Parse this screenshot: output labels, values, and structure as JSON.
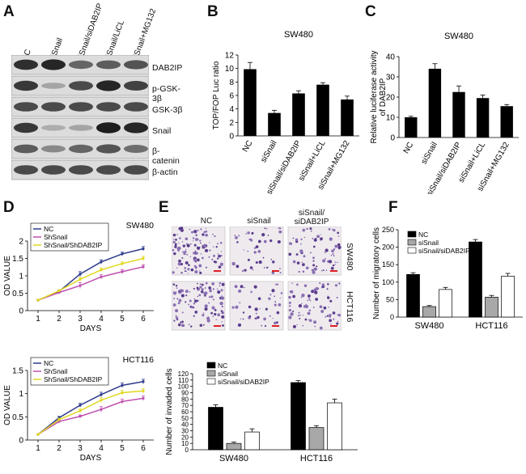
{
  "panels": {
    "A": "A",
    "B": "B",
    "C": "C",
    "D": "D",
    "E": "E",
    "F": "F"
  },
  "blot": {
    "lanes": [
      "NC",
      "siSnail",
      "siSnail/siDAB2IP",
      "siSnail/LiCL",
      "siSnail+MG132"
    ],
    "rows": [
      {
        "label": "DAB2IP",
        "intensity": [
          0.85,
          0.9,
          0.55,
          0.6,
          0.65
        ]
      },
      {
        "label": "p-GSK-3β",
        "intensity": [
          0.8,
          0.2,
          0.7,
          0.9,
          0.75
        ]
      },
      {
        "label": "GSK-3β",
        "intensity": [
          0.7,
          0.7,
          0.7,
          0.7,
          0.7
        ]
      },
      {
        "label": "Snail",
        "intensity": [
          0.8,
          0.15,
          0.2,
          0.95,
          0.9
        ]
      },
      {
        "label": "β-catenin",
        "intensity": [
          0.6,
          0.35,
          0.55,
          0.65,
          0.5
        ]
      },
      {
        "label": "β-actin",
        "intensity": [
          0.7,
          0.7,
          0.7,
          0.7,
          0.7
        ]
      }
    ]
  },
  "microscopy": {
    "columns": [
      "NC",
      "siSnail",
      "siSnail/\nsiDAB2IP"
    ],
    "rows": [
      "SW480",
      "HCT116"
    ]
  },
  "chart_data": [
    {
      "id": "B",
      "type": "bar",
      "title": "SW480",
      "ylabel": "TOP/FOP Luc ratio",
      "categories": [
        "NC",
        "siSnail",
        "siSnail/siDAB2IP",
        "siSnail+LiCL",
        "siSnail+MG132"
      ],
      "values": [
        9.9,
        3.4,
        6.3,
        7.6,
        5.4
      ],
      "errors": [
        1.0,
        0.4,
        0.4,
        0.3,
        0.5
      ],
      "ylim": [
        0,
        12
      ],
      "yticks": [
        0,
        2,
        4,
        6,
        8,
        10,
        12
      ]
    },
    {
      "id": "C",
      "type": "bar",
      "title": "SW480",
      "ylabel": "Relative luciferase activity of DAB2IP",
      "categories": [
        "NC",
        "siSnail",
        "siSnail/siDAB2IP",
        "siSnail+LiCL",
        "siSnail+MG132"
      ],
      "values": [
        10,
        34,
        22.5,
        19.5,
        15.5
      ],
      "errors": [
        0.5,
        2.5,
        3,
        1.5,
        0.8
      ],
      "ylim": [
        0,
        40
      ],
      "yticks": [
        0,
        10,
        20,
        30,
        40
      ]
    },
    {
      "id": "D1",
      "type": "line",
      "title": "SW480",
      "xlabel": "DAYS",
      "ylabel": "OD VALUE",
      "x": [
        1,
        2,
        3,
        4,
        5,
        6
      ],
      "ylim": [
        0,
        2
      ],
      "yticks": [
        "0",
        "0.5",
        "1",
        "1.5",
        "2"
      ],
      "series": [
        {
          "name": "NC",
          "color": "#2e3a8c",
          "values": [
            0.3,
            0.55,
            1.05,
            1.4,
            1.63,
            1.78
          ],
          "errors": [
            0.02,
            0.04,
            0.07,
            0.06,
            0.05,
            0.06
          ]
        },
        {
          "name": "ShSnail",
          "color": "#c050b0",
          "values": [
            0.3,
            0.52,
            0.72,
            0.97,
            1.12,
            1.26
          ],
          "errors": [
            0.02,
            0.03,
            0.08,
            0.06,
            0.06,
            0.06
          ]
        },
        {
          "name": "ShSnail/ShDAB2IP",
          "color": "#e0d820",
          "values": [
            0.3,
            0.57,
            0.9,
            1.17,
            1.35,
            1.5
          ],
          "errors": [
            0.02,
            0.03,
            0.05,
            0.05,
            0.05,
            0.06
          ]
        }
      ]
    },
    {
      "id": "D2",
      "type": "line",
      "title": "HCT116",
      "xlabel": "DAYS",
      "ylabel": "OD VALUE",
      "x": [
        1,
        2,
        3,
        4,
        5,
        6
      ],
      "ylim": [
        0,
        1.5
      ],
      "yticks": [
        "0",
        "0.5",
        "1",
        "1.5"
      ],
      "series": [
        {
          "name": "NC",
          "color": "#2e3a8c",
          "values": [
            0.12,
            0.48,
            0.75,
            0.98,
            1.18,
            1.26
          ],
          "errors": [
            0.01,
            0.03,
            0.04,
            0.05,
            0.05,
            0.05
          ]
        },
        {
          "name": "ShSnail",
          "color": "#c050b0",
          "values": [
            0.12,
            0.4,
            0.51,
            0.66,
            0.83,
            0.9
          ],
          "errors": [
            0.01,
            0.03,
            0.03,
            0.06,
            0.05,
            0.05
          ]
        },
        {
          "name": "ShSnail/ShDAB2IP",
          "color": "#e0d820",
          "values": [
            0.12,
            0.44,
            0.63,
            0.86,
            1.02,
            1.06
          ],
          "errors": [
            0.01,
            0.03,
            0.04,
            0.05,
            0.05,
            0.05
          ]
        }
      ]
    },
    {
      "id": "E",
      "type": "bar",
      "ylabel": "Number of invaded cells",
      "categories": [
        "SW480",
        "HCT116"
      ],
      "ylim": [
        0,
        120
      ],
      "yticks": [
        0,
        10,
        20,
        30,
        40,
        50,
        60,
        70,
        80,
        90,
        100,
        110,
        120
      ],
      "series": [
        {
          "name": "NC",
          "color": "#000000",
          "values": [
            67,
            106
          ],
          "errors": [
            4,
            3
          ]
        },
        {
          "name": "siSnail",
          "color": "#a8a8a8",
          "values": [
            10,
            35
          ],
          "errors": [
            2,
            3
          ]
        },
        {
          "name": "siSnail/siDAB2IP",
          "color": "#ffffff",
          "values": [
            28,
            74
          ],
          "errors": [
            5,
            6
          ]
        }
      ]
    },
    {
      "id": "F",
      "type": "bar",
      "ylabel": "Number of migratory cells",
      "categories": [
        "SW480",
        "HCT116"
      ],
      "ylim": [
        0,
        250
      ],
      "yticks": [
        0,
        50,
        100,
        150,
        200,
        250
      ],
      "series": [
        {
          "name": "NC",
          "color": "#000000",
          "values": [
            122,
            215
          ],
          "errors": [
            5,
            7
          ]
        },
        {
          "name": "siSnail",
          "color": "#a8a8a8",
          "values": [
            30,
            57
          ],
          "errors": [
            3,
            5
          ]
        },
        {
          "name": "siSnail/siDAB2IP",
          "color": "#ffffff",
          "values": [
            79,
            117
          ],
          "errors": [
            6,
            8
          ]
        }
      ]
    }
  ]
}
